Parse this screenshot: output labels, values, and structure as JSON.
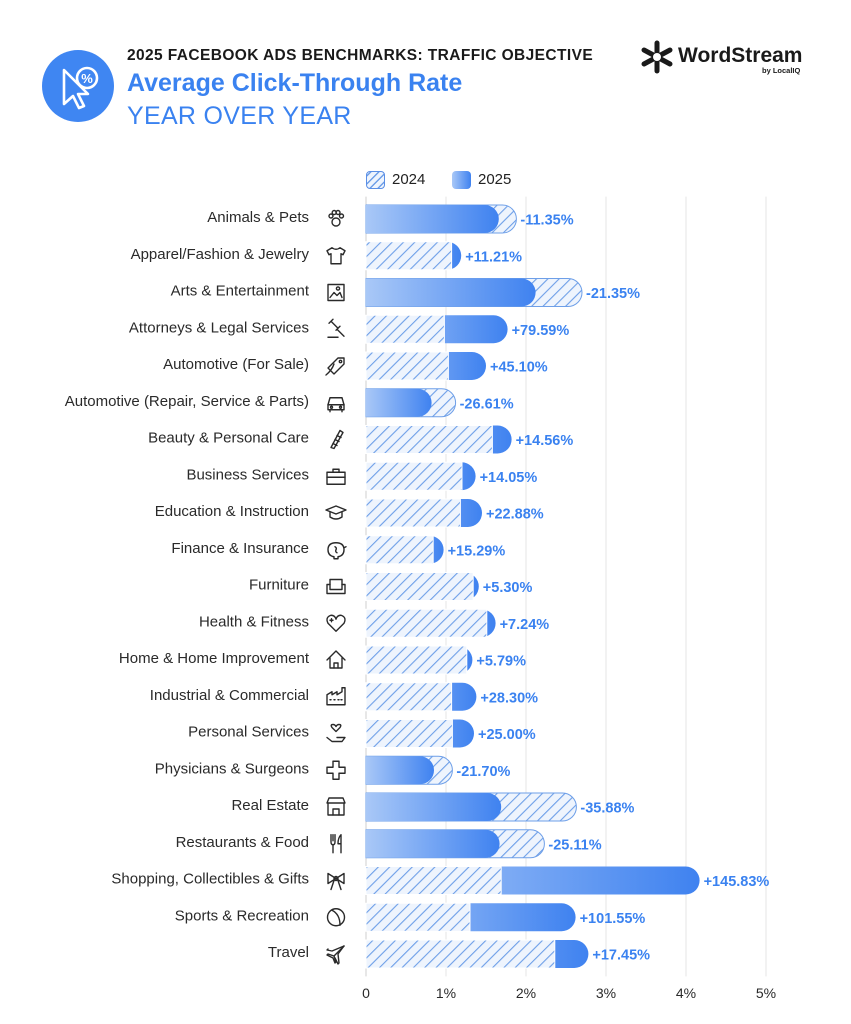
{
  "header": {
    "kicker": "2025 FACEBOOK ADS BENCHMARKS: TRAFFIC OBJECTIVE",
    "title": "Average Click-Through Rate",
    "subtitle": "YEAR OVER YEAR",
    "logo_symbol": "%"
  },
  "brand": {
    "name": "WordStream",
    "sub": "by LocalIQ"
  },
  "colors": {
    "accent": "#3a82f0",
    "bar_2025_start": "#a9c8f7",
    "bar_2025_end": "#3f82f0",
    "hatch": "#6e9fe8"
  },
  "chart_data": {
    "type": "bar",
    "orientation": "horizontal",
    "title": "Average Click-Through Rate",
    "xlabel": "",
    "ylabel": "",
    "xlim": [
      0,
      5
    ],
    "x_ticks": [
      "0",
      "1%",
      "2%",
      "3%",
      "4%",
      "5%"
    ],
    "grid": true,
    "legend": {
      "position": "top",
      "entries": [
        "2024",
        "2025"
      ]
    },
    "categories": [
      "Animals & Pets",
      "Apparel/Fashion & Jewelry",
      "Arts & Entertainment",
      "Attorneys & Legal Services",
      "Automotive (For Sale)",
      "Automotive (Repair, Service & Parts)",
      "Beauty & Personal Care",
      "Business Services",
      "Education & Instruction",
      "Finance & Insurance",
      "Furniture",
      "Health & Fitness",
      "Home & Home Improvement",
      "Industrial & Commercial",
      "Personal Services",
      "Physicians & Surgeons",
      "Real Estate",
      "Restaurants & Food",
      "Shopping, Collectibles & Gifts",
      "Sports & Recreation",
      "Travel"
    ],
    "icons": [
      "paw-icon",
      "tshirt-icon",
      "picture-icon",
      "gavel-icon",
      "price-tag-icon",
      "car-icon",
      "comb-icon",
      "briefcase-icon",
      "graduation-cap-icon",
      "piggy-bank-icon",
      "armchair-icon",
      "heart-icon",
      "house-icon",
      "factory-icon",
      "hand-heart-icon",
      "medical-cross-icon",
      "storefront-icon",
      "fork-knife-icon",
      "gift-bow-icon",
      "ball-icon",
      "airplane-icon"
    ],
    "series": [
      {
        "name": "2024",
        "values": [
          1.88,
          1.07,
          2.7,
          0.98,
          1.03,
          1.12,
          1.58,
          1.2,
          1.18,
          0.84,
          1.34,
          1.51,
          1.26,
          1.07,
          1.08,
          1.08,
          2.63,
          2.23,
          1.69,
          1.3,
          2.36
        ]
      },
      {
        "name": "2025",
        "values": [
          1.66,
          1.19,
          2.12,
          1.77,
          1.5,
          0.82,
          1.82,
          1.37,
          1.45,
          0.97,
          1.41,
          1.62,
          1.33,
          1.38,
          1.35,
          0.85,
          1.69,
          1.67,
          4.17,
          2.62,
          2.78
        ]
      }
    ],
    "change_labels": [
      "-11.35%",
      "+11.21%",
      "-21.35%",
      "+79.59%",
      "+45.10%",
      "-26.61%",
      "+14.56%",
      "+14.05%",
      "+22.88%",
      "+15.29%",
      "+5.30%",
      "+7.24%",
      "+5.79%",
      "+28.30%",
      "+25.00%",
      "-21.70%",
      "-35.88%",
      "-25.11%",
      "+145.83%",
      "+101.55%",
      "+17.45%"
    ]
  }
}
